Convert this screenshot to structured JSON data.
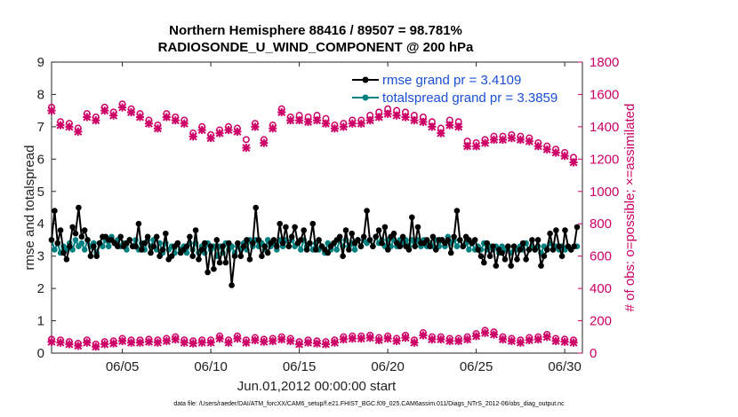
{
  "chart_data": {
    "type": "line",
    "title": "Northern Hemisphere 88416 / 89507 = 98.781%",
    "subtitle": "RADIOSONDE_U_WIND_COMPONENT @ 200 hPa",
    "xlabel": "Jun.01,2012 00:00:00 start",
    "ylabel": "rmse and totalspread",
    "ylabel_right": "# of obs: o=possible; ×=assimilated",
    "xlim": [
      1,
      31
    ],
    "ylim": [
      0,
      9
    ],
    "ylim_right": [
      0,
      1800
    ],
    "x_ticks": [
      5,
      10,
      15,
      20,
      25,
      30
    ],
    "x_tick_labels": [
      "06/05",
      "06/10",
      "06/15",
      "06/20",
      "06/25",
      "06/30"
    ],
    "y_ticks": [
      "0",
      "1",
      "2",
      "3",
      "4",
      "5",
      "6",
      "7",
      "8",
      "9"
    ],
    "y_ticks_right": [
      "0",
      "200",
      "400",
      "600",
      "800",
      "1000",
      "1200",
      "1400",
      "1600",
      "1800"
    ],
    "footnote": "data file: /Users/raeder/DAI/ATM_forcXX/CAM6_setup/f.e21.FHIST_BGC.f09_025.CAM6assim.011/Diags_NTrS_2012-06/obs_diag_output.nc",
    "colors": {
      "rmse": "#000000",
      "spread": "#008080",
      "obs": "#cc0066",
      "legend_text": "#1a4fd6"
    },
    "series": [
      {
        "name": "rmse grand pr = 3.4109",
        "axis": "left",
        "values": [
          3.5,
          4.4,
          3.4,
          3.8,
          3.1,
          2.9,
          3.3,
          3.9,
          3.7,
          4.5,
          3.6,
          3.8,
          3.5,
          3.0,
          3.3,
          3.0,
          3.4,
          3.6,
          3.6,
          3.5,
          3.5,
          3.4,
          3.3,
          3.6,
          3.3,
          3.4,
          3.5,
          3.3,
          3.3,
          4.0,
          3.2,
          3.4,
          3.6,
          3.1,
          3.3,
          3.6,
          3.0,
          3.2,
          3.7,
          2.9,
          3.0,
          3.3,
          3.4,
          3.1,
          3.2,
          3.3,
          3.6,
          3.0,
          3.8,
          2.9,
          3.2,
          3.4,
          2.5,
          3.3,
          2.6,
          3.5,
          2.8,
          3.3,
          2.8,
          3.4,
          2.1,
          3.0,
          3.4,
          3.0,
          3.3,
          3.5,
          2.9,
          3.4,
          4.5,
          3.5,
          3.0,
          3.3,
          3.1,
          3.4,
          3.5,
          3.3,
          4.0,
          3.4,
          3.9,
          3.3,
          3.6,
          3.9,
          3.4,
          3.5,
          3.8,
          3.2,
          3.4,
          4.0,
          3.2,
          3.5,
          3.3,
          3.2,
          3.1,
          3.3,
          3.4,
          3.5,
          3.6,
          3.0,
          3.8,
          3.2,
          3.7,
          3.4,
          3.5,
          3.3,
          3.6,
          4.4,
          3.5,
          3.3,
          3.6,
          3.8,
          3.4,
          3.9,
          3.2,
          3.6,
          3.7,
          3.4,
          3.3,
          3.6,
          3.3,
          3.2,
          4.2,
          3.3,
          3.9,
          3.4,
          3.4,
          3.5,
          3.3,
          3.6,
          3.2,
          3.5,
          3.5,
          3.4,
          3.5,
          3.1,
          3.6,
          4.4,
          3.5,
          3.3,
          3.6,
          3.5,
          3.4,
          3.5,
          3.2,
          3.0,
          2.8,
          3.4,
          3.0,
          3.3,
          2.7,
          3.2,
          3.1,
          2.9,
          3.3,
          2.7,
          3.3,
          2.9,
          3.2,
          3.4,
          2.9,
          3.2,
          3.5,
          3.2,
          3.5,
          2.7,
          3.0,
          3.2,
          3.7,
          3.2,
          3.8,
          3.3,
          3.0,
          3.8,
          3.3,
          3.2,
          3.3,
          3.9
        ]
      },
      {
        "name": "totalspread grand pr = 3.3859",
        "axis": "left",
        "values": [
          3.5,
          3.2,
          3.4,
          3.1,
          3.3,
          3.2,
          3.4,
          3.2,
          3.5,
          3.3,
          3.4,
          3.2,
          3.5,
          3.3,
          3.4,
          3.1,
          3.4,
          3.3,
          3.5,
          3.3,
          3.6,
          3.4,
          3.5,
          3.3,
          3.4,
          3.2,
          3.5,
          3.3,
          3.5,
          3.2,
          3.4,
          3.2,
          3.5,
          3.3,
          3.5,
          3.2,
          3.4,
          3.1,
          3.4,
          3.2,
          3.3,
          3.1,
          3.4,
          3.2,
          3.3,
          3.1,
          3.4,
          3.2,
          3.4,
          3.1,
          3.3,
          3.1,
          3.4,
          3.2,
          3.3,
          3.0,
          3.3,
          3.1,
          3.4,
          3.2,
          3.3,
          3.1,
          3.3,
          3.2,
          3.4,
          3.2,
          3.5,
          3.3,
          3.5,
          3.3,
          3.4,
          3.2,
          3.5,
          3.3,
          3.4,
          3.2,
          3.5,
          3.3,
          3.5,
          3.3,
          3.5,
          3.3,
          3.4,
          3.2,
          3.5,
          3.3,
          3.4,
          3.2,
          3.4,
          3.2,
          3.3,
          3.1,
          3.4,
          3.2,
          3.4,
          3.2,
          3.5,
          3.3,
          3.5,
          3.3,
          3.4,
          3.2,
          3.5,
          3.3,
          3.5,
          3.4,
          3.5,
          3.3,
          3.6,
          3.4,
          3.5,
          3.3,
          3.5,
          3.3,
          3.5,
          3.3,
          3.5,
          3.4,
          3.5,
          3.3,
          3.5,
          3.4,
          3.5,
          3.3,
          3.5,
          3.3,
          3.4,
          3.3,
          3.5,
          3.3,
          3.5,
          3.3,
          3.6,
          3.4,
          3.5,
          3.3,
          3.5,
          3.3,
          3.4,
          3.2,
          3.4,
          3.2,
          3.3,
          3.2,
          3.4,
          3.2,
          3.3,
          3.2,
          3.3,
          3.1,
          3.3,
          3.2,
          3.3,
          3.1,
          3.3,
          3.2,
          3.3,
          3.2,
          3.4,
          3.2,
          3.3,
          3.2,
          3.3,
          3.1,
          3.3,
          3.2,
          3.4,
          3.2,
          3.3,
          3.2,
          3.3,
          3.2,
          3.3,
          3.2,
          3.3,
          3.3
        ]
      },
      {
        "name": "possible obs",
        "axis": "right",
        "marker": "circle",
        "x": [
          1,
          1.5,
          2,
          2.5,
          3,
          3.5,
          4,
          4.5,
          5,
          5.5,
          6,
          6.5,
          7,
          7.5,
          8,
          8.5,
          9,
          9.5,
          10,
          10.5,
          11,
          11.5,
          12,
          12.5,
          13,
          13.5,
          14,
          14.5,
          15,
          15.5,
          16,
          16.5,
          17,
          17.5,
          18,
          18.5,
          19,
          19.5,
          20,
          20.5,
          21,
          21.5,
          22,
          22.5,
          23,
          23.5,
          24,
          24.5,
          25,
          25.5,
          26,
          26.5,
          27,
          27.5,
          28,
          28.5,
          29,
          29.5,
          30,
          30.5
        ],
        "values": [
          1510,
          1420,
          1410,
          1380,
          1470,
          1450,
          1510,
          1480,
          1530,
          1500,
          1470,
          1430,
          1400,
          1470,
          1450,
          1430,
          1350,
          1390,
          1340,
          1370,
          1390,
          1380,
          1310,
          1410,
          1310,
          1400,
          1500,
          1450,
          1460,
          1450,
          1460,
          1440,
          1400,
          1410,
          1430,
          1430,
          1460,
          1480,
          1500,
          1490,
          1480,
          1460,
          1450,
          1420,
          1380,
          1430,
          1420,
          1300,
          1290,
          1310,
          1330,
          1330,
          1340,
          1330,
          1320,
          1290,
          1270,
          1250,
          1230,
          1200
        ]
      },
      {
        "name": "assimilated obs",
        "axis": "right",
        "marker": "star",
        "x": [
          1,
          1.5,
          2,
          2.5,
          3,
          3.5,
          4,
          4.5,
          5,
          5.5,
          6,
          6.5,
          7,
          7.5,
          8,
          8.5,
          9,
          9.5,
          10,
          10.5,
          11,
          11.5,
          12,
          12.5,
          13,
          13.5,
          14,
          14.5,
          15,
          15.5,
          16,
          16.5,
          17,
          17.5,
          18,
          18.5,
          19,
          19.5,
          20,
          20.5,
          21,
          21.5,
          22,
          22.5,
          23,
          23.5,
          24,
          24.5,
          25,
          25.5,
          26,
          26.5,
          27,
          27.5,
          28,
          28.5,
          29,
          29.5,
          30,
          30.5
        ],
        "values": [
          1500,
          1410,
          1400,
          1370,
          1460,
          1440,
          1500,
          1470,
          1520,
          1490,
          1460,
          1420,
          1390,
          1460,
          1440,
          1420,
          1340,
          1380,
          1330,
          1360,
          1380,
          1370,
          1270,
          1400,
          1300,
          1390,
          1490,
          1440,
          1440,
          1430,
          1440,
          1420,
          1390,
          1400,
          1420,
          1420,
          1440,
          1460,
          1480,
          1470,
          1460,
          1440,
          1430,
          1400,
          1360,
          1410,
          1400,
          1280,
          1280,
          1300,
          1320,
          1320,
          1330,
          1320,
          1310,
          1280,
          1260,
          1240,
          1220,
          1180
        ]
      },
      {
        "name": "possible obs (low)",
        "axis": "right",
        "marker": "circle",
        "x": [
          1,
          1.5,
          2,
          2.5,
          3,
          3.5,
          4,
          4.5,
          5,
          5.5,
          6,
          6.5,
          7,
          7.5,
          8,
          8.5,
          9,
          9.5,
          10,
          10.5,
          11,
          11.5,
          12,
          12.5,
          13,
          13.5,
          14,
          14.5,
          15,
          15.5,
          16,
          16.5,
          17,
          17.5,
          18,
          18.5,
          19,
          19.5,
          20,
          20.5,
          21,
          21.5,
          22,
          22.5,
          23,
          23.5,
          24,
          24.5,
          25,
          25.5,
          26,
          26.5,
          27,
          27.5,
          28,
          28.5,
          29,
          29.5,
          30,
          30.5
        ],
        "values": [
          75,
          70,
          60,
          50,
          70,
          45,
          60,
          65,
          80,
          70,
          70,
          75,
          70,
          80,
          90,
          70,
          65,
          70,
          70,
          95,
          70,
          95,
          70,
          85,
          75,
          80,
          90,
          80,
          60,
          70,
          65,
          60,
          70,
          90,
          95,
          95,
          100,
          85,
          95,
          80,
          100,
          70,
          115,
          90,
          90,
          80,
          80,
          90,
          110,
          130,
          120,
          90,
          80,
          70,
          85,
          90,
          105,
          80,
          75,
          70
        ]
      },
      {
        "name": "assimilated obs (low)",
        "axis": "right",
        "marker": "star",
        "x": [
          1,
          1.5,
          2,
          2.5,
          3,
          3.5,
          4,
          4.5,
          5,
          5.5,
          6,
          6.5,
          7,
          7.5,
          8,
          8.5,
          9,
          9.5,
          10,
          10.5,
          11,
          11.5,
          12,
          12.5,
          13,
          13.5,
          14,
          14.5,
          15,
          15.5,
          16,
          16.5,
          17,
          17.5,
          18,
          18.5,
          19,
          19.5,
          20,
          20.5,
          21,
          21.5,
          22,
          22.5,
          23,
          23.5,
          24,
          24.5,
          25,
          25.5,
          26,
          26.5,
          27,
          27.5,
          28,
          28.5,
          29,
          29.5,
          30,
          30.5
        ],
        "values": [
          70,
          65,
          55,
          45,
          65,
          40,
          55,
          60,
          75,
          65,
          65,
          70,
          65,
          75,
          85,
          65,
          60,
          65,
          65,
          90,
          65,
          90,
          65,
          80,
          70,
          75,
          85,
          75,
          55,
          65,
          60,
          55,
          65,
          85,
          90,
          90,
          95,
          80,
          90,
          75,
          95,
          65,
          110,
          85,
          85,
          75,
          75,
          85,
          105,
          125,
          115,
          85,
          75,
          65,
          80,
          85,
          100,
          75,
          70,
          65
        ]
      }
    ]
  }
}
